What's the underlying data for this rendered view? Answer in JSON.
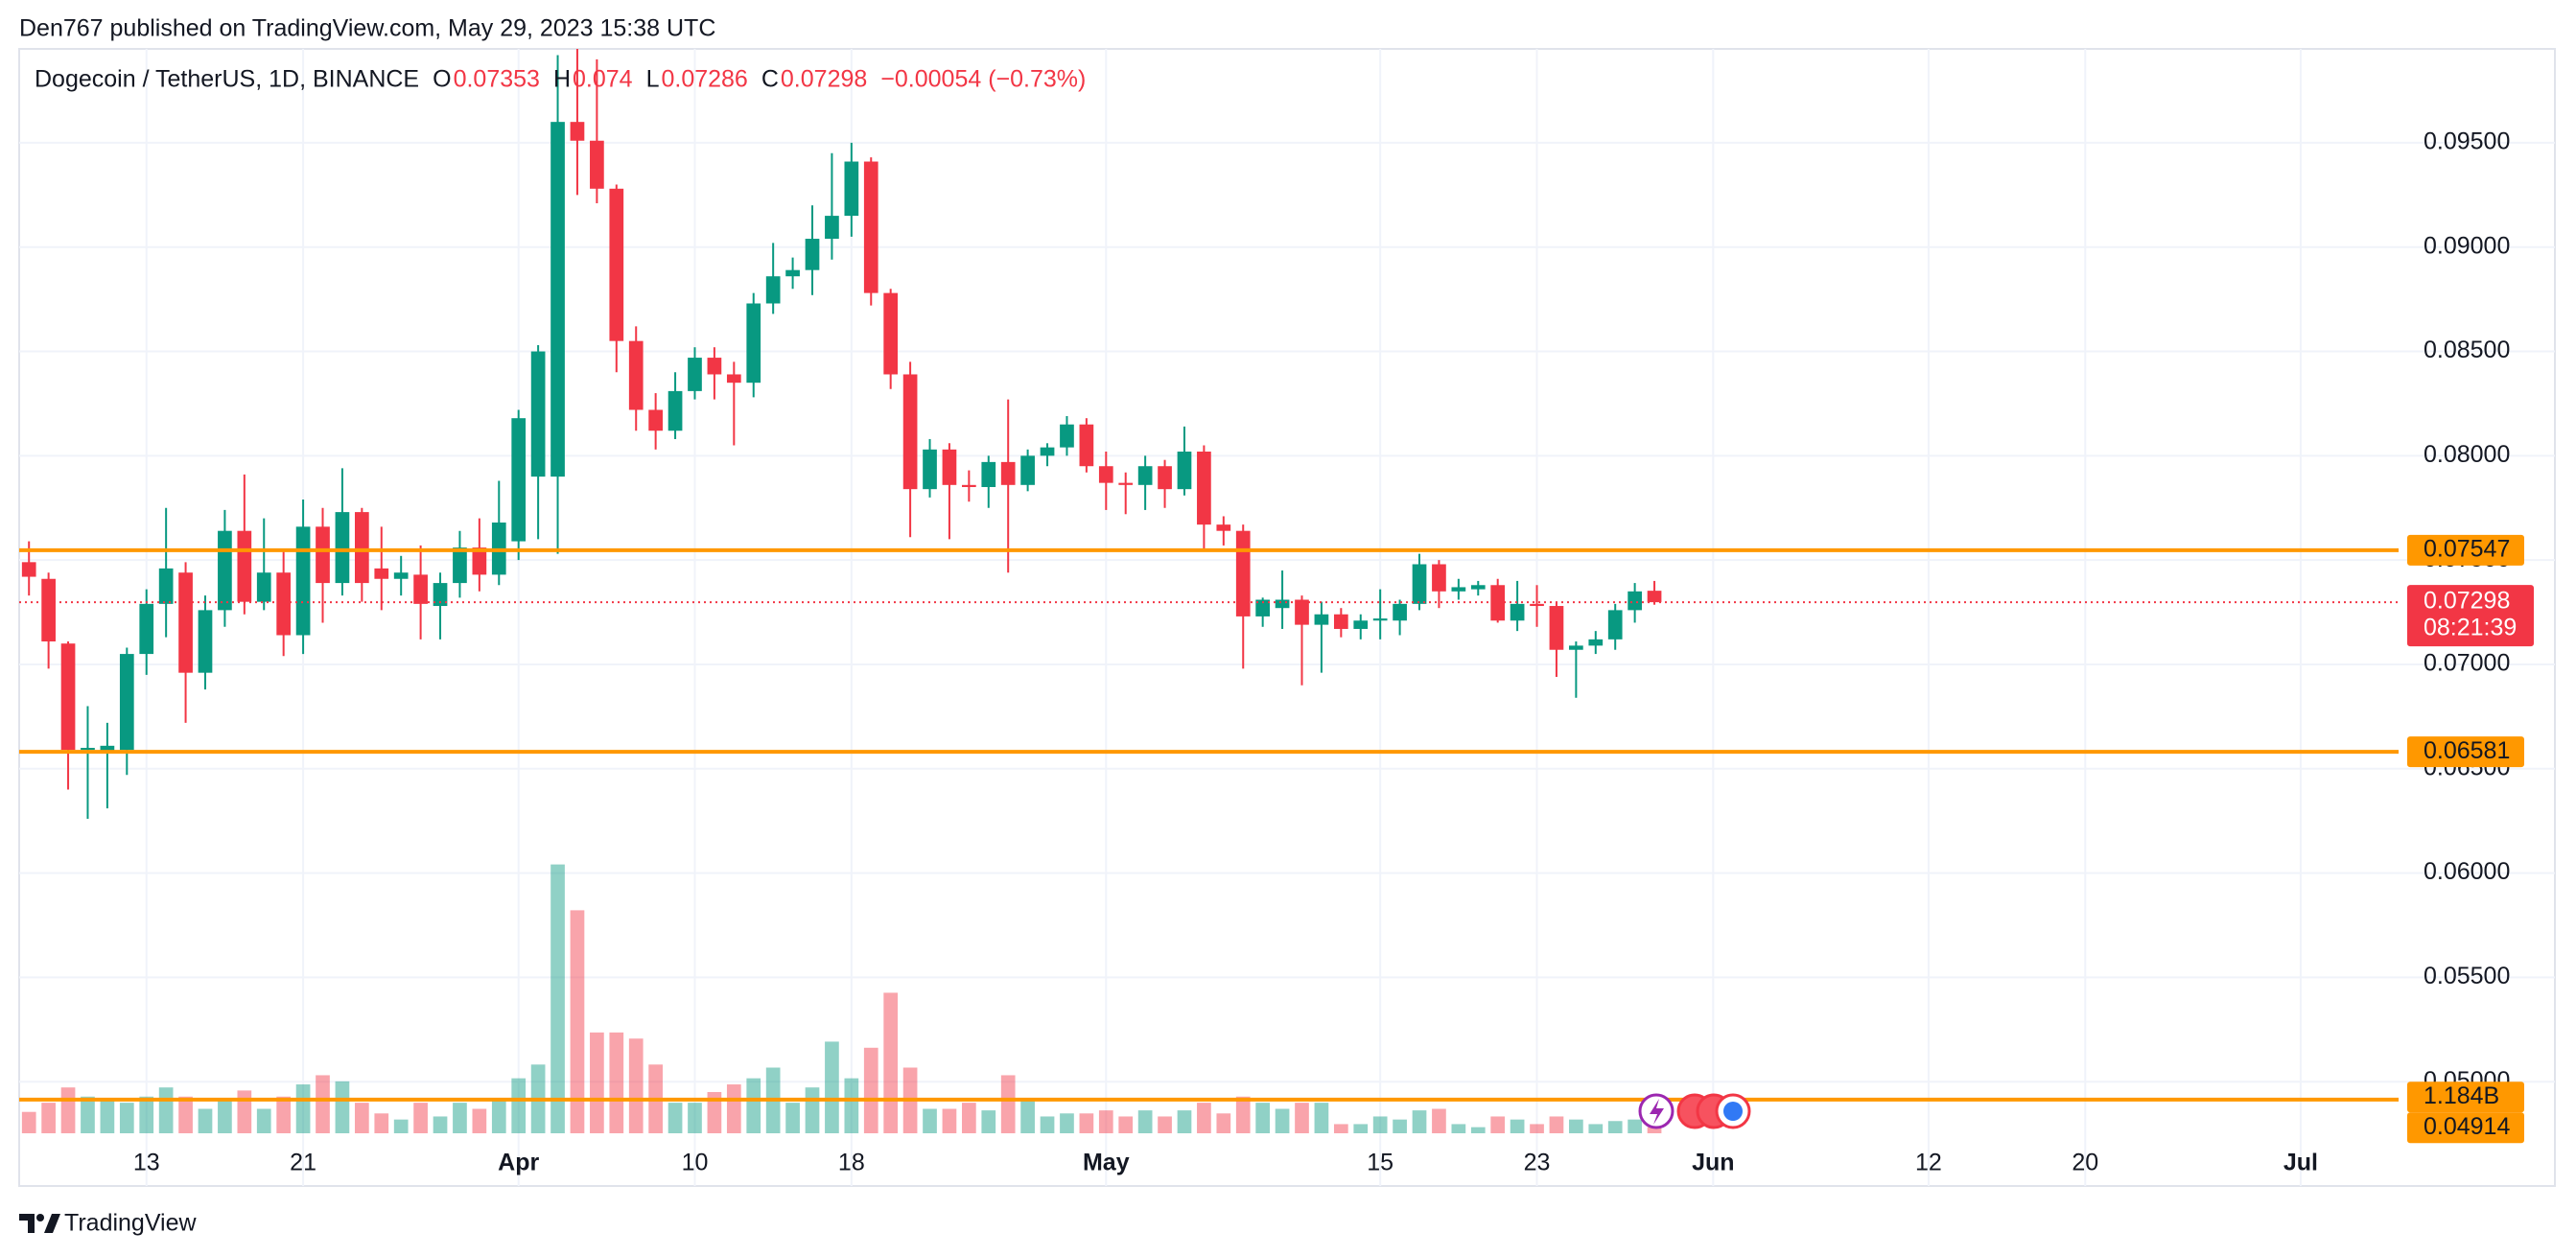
{
  "header": "Den767 published on TradingView.com, May 29, 2023 15:38 UTC",
  "footer": "TradingView",
  "chart_data": {
    "type": "candlestick",
    "title": "Dogecoin / TetherUS, 1D, BINANCE",
    "legend_keys": [
      "O",
      "H",
      "L",
      "C"
    ],
    "change": "−0.00054 (−0.73%)",
    "countdown": "08:21:39",
    "up_color": "#089981",
    "down_color": "#f23645",
    "level_color": "#ff9800",
    "grid": true,
    "candles": {
      "open": [
        0.0749,
        0.0741,
        0.071,
        0.0659,
        0.0658,
        0.0659,
        0.0705,
        0.0729,
        0.0744,
        0.0696,
        0.0726,
        0.0764,
        0.073,
        0.0744,
        0.0714,
        0.0766,
        0.0739,
        0.0773,
        0.0746,
        0.0741,
        0.0743,
        0.0728,
        0.0739,
        0.0756,
        0.0743,
        0.0759,
        0.079,
        0.079,
        0.096,
        0.0951,
        0.0928,
        0.0855,
        0.0822,
        0.0812,
        0.0831,
        0.0847,
        0.0839,
        0.0835,
        0.0873,
        0.0886,
        0.0889,
        0.0904,
        0.0915,
        0.0941,
        0.0878,
        0.0839,
        0.0784,
        0.0803,
        0.0786,
        0.0785,
        0.0797,
        0.0786,
        0.08,
        0.0804,
        0.0815,
        0.0795,
        0.0787,
        0.0786,
        0.0795,
        0.0784,
        0.0802,
        0.0767,
        0.0764,
        0.0723,
        0.0727,
        0.0731,
        0.0719,
        0.0724,
        0.0717,
        0.0721,
        0.0721,
        0.0729,
        0.0748,
        0.0735,
        0.0736,
        0.0738,
        0.0721,
        0.0729,
        0.0728,
        0.0707,
        0.0709,
        0.0712,
        0.0726,
        0.07353
      ],
      "high": [
        0.0759,
        0.0744,
        0.0711,
        0.068,
        0.0672,
        0.0708,
        0.0736,
        0.0775,
        0.0749,
        0.0733,
        0.0774,
        0.0791,
        0.077,
        0.0754,
        0.0779,
        0.0775,
        0.0794,
        0.0775,
        0.0766,
        0.0752,
        0.0757,
        0.0744,
        0.0764,
        0.077,
        0.0788,
        0.0822,
        0.0853,
        0.0992,
        0.0995,
        0.099,
        0.093,
        0.0862,
        0.083,
        0.084,
        0.0852,
        0.0852,
        0.0845,
        0.0878,
        0.0902,
        0.0895,
        0.092,
        0.0945,
        0.095,
        0.0943,
        0.088,
        0.0845,
        0.0808,
        0.0806,
        0.0793,
        0.08,
        0.0827,
        0.0803,
        0.0806,
        0.0819,
        0.0818,
        0.0802,
        0.0792,
        0.08,
        0.0798,
        0.0814,
        0.0805,
        0.0771,
        0.0767,
        0.0732,
        0.0745,
        0.0733,
        0.073,
        0.0727,
        0.0724,
        0.0736,
        0.0731,
        0.0753,
        0.075,
        0.0741,
        0.074,
        0.0741,
        0.074,
        0.0738,
        0.073,
        0.0711,
        0.0716,
        0.0729,
        0.0739,
        0.074
      ],
      "low": [
        0.0733,
        0.0698,
        0.064,
        0.0626,
        0.0631,
        0.0647,
        0.0695,
        0.0713,
        0.0672,
        0.0688,
        0.0718,
        0.0724,
        0.0726,
        0.0704,
        0.0705,
        0.072,
        0.0733,
        0.073,
        0.0726,
        0.0733,
        0.0712,
        0.0712,
        0.0732,
        0.0735,
        0.0738,
        0.075,
        0.076,
        0.0753,
        0.0925,
        0.0921,
        0.084,
        0.0812,
        0.0803,
        0.0808,
        0.0827,
        0.0827,
        0.0805,
        0.0828,
        0.0868,
        0.088,
        0.0877,
        0.0894,
        0.0905,
        0.0872,
        0.0832,
        0.0761,
        0.078,
        0.076,
        0.0778,
        0.0775,
        0.0744,
        0.0783,
        0.0795,
        0.08,
        0.0792,
        0.0774,
        0.0772,
        0.0774,
        0.0775,
        0.0781,
        0.0755,
        0.0757,
        0.0698,
        0.0718,
        0.0717,
        0.069,
        0.0696,
        0.0713,
        0.0712,
        0.0712,
        0.0714,
        0.0726,
        0.0727,
        0.0731,
        0.0733,
        0.072,
        0.0716,
        0.0718,
        0.0694,
        0.0684,
        0.0705,
        0.0707,
        0.072,
        0.07286
      ],
      "close": [
        0.0742,
        0.0711,
        0.0659,
        0.066,
        0.0661,
        0.0705,
        0.0729,
        0.0746,
        0.0696,
        0.0726,
        0.0764,
        0.073,
        0.0744,
        0.0714,
        0.0766,
        0.0739,
        0.0773,
        0.0739,
        0.0741,
        0.0744,
        0.0729,
        0.0739,
        0.0756,
        0.0743,
        0.0768,
        0.0818,
        0.085,
        0.096,
        0.0951,
        0.0928,
        0.0855,
        0.0822,
        0.0812,
        0.0831,
        0.0847,
        0.0839,
        0.0835,
        0.0873,
        0.0886,
        0.0889,
        0.0904,
        0.0915,
        0.0941,
        0.0878,
        0.0839,
        0.0784,
        0.0803,
        0.0786,
        0.0785,
        0.0797,
        0.0786,
        0.08,
        0.0804,
        0.0815,
        0.0795,
        0.0787,
        0.0786,
        0.0795,
        0.0784,
        0.0802,
        0.0767,
        0.0764,
        0.0723,
        0.0731,
        0.0731,
        0.0719,
        0.0724,
        0.0717,
        0.0721,
        0.0722,
        0.0729,
        0.0748,
        0.0735,
        0.0737,
        0.0738,
        0.0721,
        0.0729,
        0.0728,
        0.0707,
        0.0709,
        0.0712,
        0.0726,
        0.0735,
        0.07298
      ]
    },
    "volume": [
      0.7,
      1.0,
      1.5,
      1.2,
      1.1,
      1.0,
      1.2,
      1.5,
      1.2,
      0.8,
      1.1,
      1.4,
      0.8,
      1.2,
      1.6,
      1.9,
      1.7,
      1.0,
      0.65,
      0.45,
      1.0,
      0.55,
      1.0,
      0.8,
      1.1,
      1.8,
      2.25,
      8.8,
      7.3,
      3.3,
      3.3,
      3.1,
      2.25,
      1.0,
      1.0,
      1.35,
      1.6,
      1.8,
      2.15,
      1.0,
      1.5,
      3.0,
      1.8,
      2.8,
      4.6,
      2.15,
      0.8,
      0.8,
      1.0,
      0.75,
      1.9,
      1.1,
      0.55,
      0.65,
      0.65,
      0.75,
      0.55,
      0.75,
      0.55,
      0.75,
      1.0,
      0.65,
      1.2,
      1.0,
      0.8,
      1.0,
      1.0,
      0.3,
      0.3,
      0.55,
      0.45,
      0.75,
      0.8,
      0.3,
      0.2,
      0.55,
      0.45,
      0.3,
      0.55,
      0.45,
      0.3,
      0.4,
      0.45,
      0.2
    ],
    "volume_lim": [
      0,
      10.2
    ],
    "volume_label": {
      "value": 1.184,
      "label": "1.184B"
    },
    "levels": [
      0.07547,
      0.06581,
      0.04914
    ],
    "xlim": [
      -0.5,
      121
    ],
    "xticks": [
      {
        "value": 6,
        "label": "13"
      },
      {
        "value": 14,
        "label": "21"
      },
      {
        "value": 25,
        "label": "Apr"
      },
      {
        "value": 34,
        "label": "10"
      },
      {
        "value": 42,
        "label": "18"
      },
      {
        "value": 55,
        "label": "May"
      },
      {
        "value": 69,
        "label": "15"
      },
      {
        "value": 77,
        "label": "23"
      },
      {
        "value": 86,
        "label": "Jun"
      },
      {
        "value": 97,
        "label": "12"
      },
      {
        "value": 105,
        "label": "20"
      },
      {
        "value": 116,
        "label": "Jul"
      }
    ],
    "ylim": [
      0.045,
      0.0995
    ],
    "yticks": [
      {
        "value": 0.05,
        "label": "0.05000"
      },
      {
        "value": 0.055,
        "label": "0.05500"
      },
      {
        "value": 0.06,
        "label": "0.06000"
      },
      {
        "value": 0.065,
        "label": "0.06500"
      },
      {
        "value": 0.07,
        "label": "0.07000"
      },
      {
        "value": 0.075,
        "label": "0.07500"
      },
      {
        "value": 0.08,
        "label": "0.08000"
      },
      {
        "value": 0.085,
        "label": "0.08500"
      },
      {
        "value": 0.09,
        "label": "0.09000"
      },
      {
        "value": 0.095,
        "label": "0.09500"
      }
    ]
  }
}
